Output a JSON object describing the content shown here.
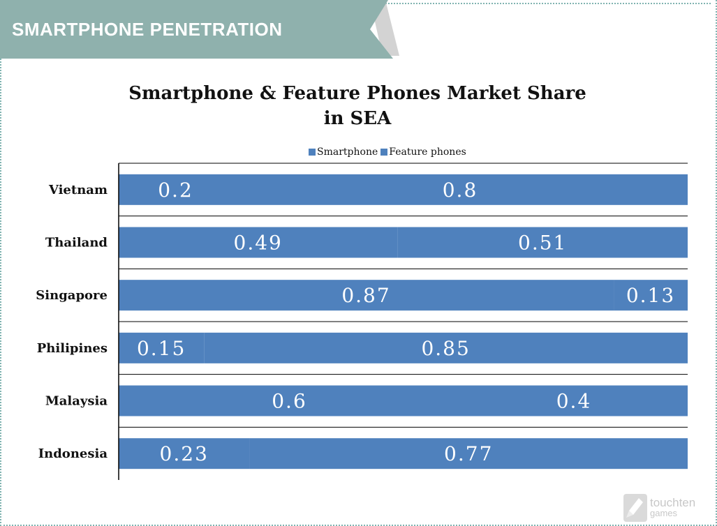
{
  "banner": {
    "title": "SMARTPHONE PENETRATION"
  },
  "colors": {
    "banner": "#8fb1ad",
    "banner_fold": "#d3d3d3",
    "smartphone": "#4f81bd",
    "feature_phones": "#4f81bd",
    "bar_label": "#ffffff",
    "axis": "#000000"
  },
  "watermark": {
    "line1": "touchten",
    "line2": "games"
  },
  "chart_data": {
    "type": "bar",
    "orientation": "horizontal",
    "stacked": true,
    "title_lines": [
      "Smartphone & Feature Phones Market Share",
      "in SEA"
    ],
    "categories": [
      "Vietnam",
      "Thailand",
      "Singapore",
      "Philipines",
      "Malaysia",
      "Indonesia"
    ],
    "series": [
      {
        "name": "Smartphone",
        "values": [
          0.2,
          0.49,
          0.87,
          0.15,
          0.6,
          0.23
        ],
        "labels": [
          "0.2",
          "0.49",
          "0.87",
          "0.15",
          "0.6",
          "0.23"
        ]
      },
      {
        "name": "Feature phones",
        "values": [
          0.8,
          0.51,
          0.13,
          0.85,
          0.4,
          0.77
        ],
        "labels": [
          "0.8",
          "0.51",
          "0.13",
          "0.85",
          "0.4",
          "0.77"
        ]
      }
    ],
    "xlim": [
      0,
      1
    ],
    "grid": true,
    "legend": "top-center"
  }
}
